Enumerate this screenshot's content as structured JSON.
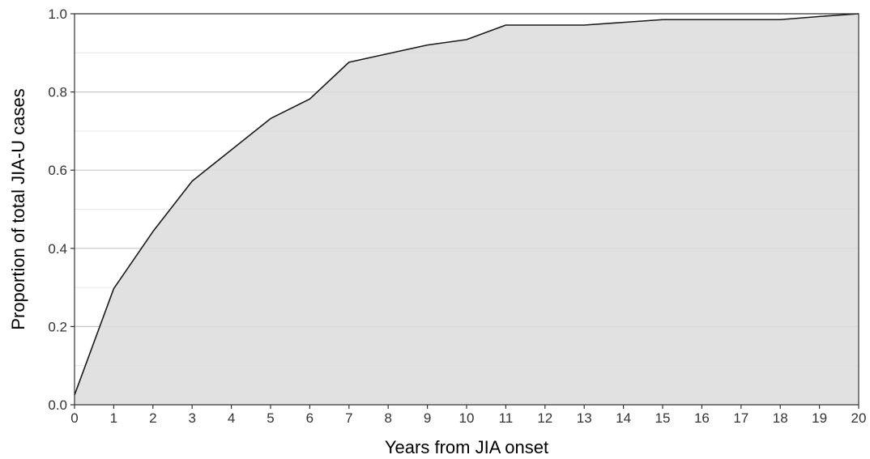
{
  "chart_data": {
    "type": "area",
    "xlabel": "Years from JIA onset",
    "ylabel": "Proportion of total JIA-U cases",
    "xlim": [
      0,
      20
    ],
    "ylim": [
      0,
      1
    ],
    "x_ticks": [
      "0",
      "1",
      "2",
      "3",
      "4",
      "5",
      "6",
      "7",
      "8",
      "9",
      "10",
      "11",
      "12",
      "13",
      "14",
      "15",
      "16",
      "17",
      "18",
      "19",
      "20"
    ],
    "y_ticks": [
      "0.0",
      "0.2",
      "0.4",
      "0.6",
      "0.8",
      "1.0"
    ],
    "grid": true,
    "series": [
      {
        "x": [
          0,
          1,
          2,
          3,
          4,
          5,
          6,
          7,
          8,
          9,
          10,
          11,
          12,
          13,
          14,
          15,
          16,
          17,
          18,
          19,
          20
        ],
        "y": [
          0.025,
          0.297,
          0.443,
          0.572,
          0.652,
          0.732,
          0.782,
          0.876,
          0.898,
          0.92,
          0.934,
          0.971,
          0.971,
          0.971,
          0.978,
          0.985,
          0.985,
          0.985,
          0.985,
          0.993,
          1.0
        ]
      }
    ],
    "colors": {
      "fill": "#dcdcdc",
      "line": "#1a1a1a",
      "grid_major": "#c8c8c8",
      "grid_minor": "#e6e6e6",
      "panel_border": "#333333"
    }
  }
}
